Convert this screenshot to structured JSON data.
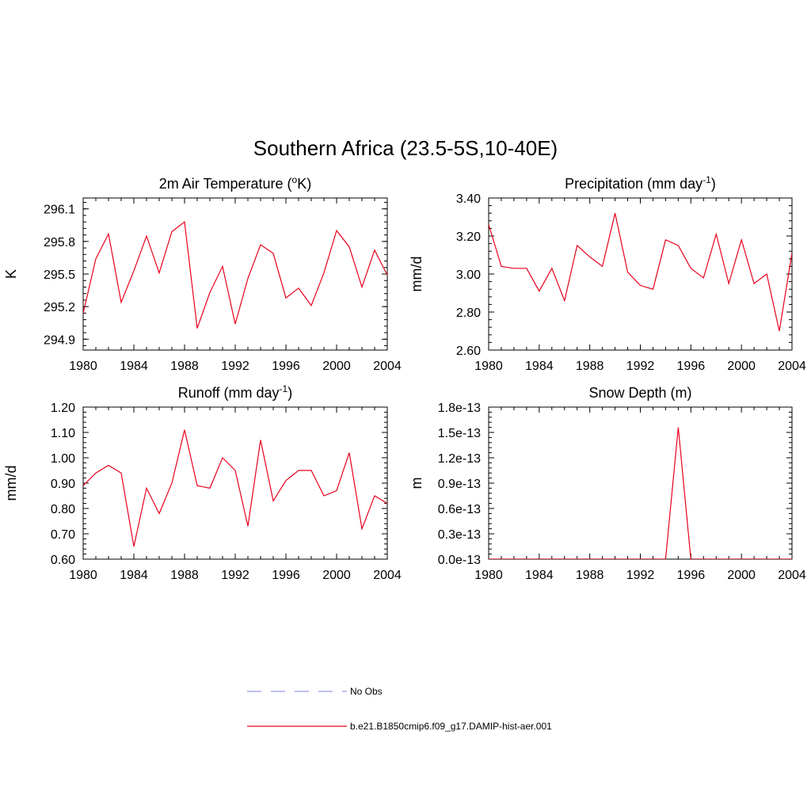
{
  "figure": {
    "title": "Southern Africa (23.5-5S,10-40E)",
    "series_color": "#e8001c",
    "obs_color": "#9999ee"
  },
  "legend": {
    "items": [
      {
        "label": "No Obs",
        "style": "dashed",
        "color": "#9999ee"
      },
      {
        "label": "b.e21.B1850cmip6.f09_g17.DAMIP-hist-aer.001",
        "style": "solid",
        "color": "#e8001c"
      }
    ]
  },
  "chart_data": [
    {
      "type": "line",
      "title_main": "2m Air Temperature (",
      "title_sup": "o",
      "title_tail": "K)",
      "ylabel": "K",
      "xlim": [
        1980,
        2004
      ],
      "ylim": [
        294.8,
        296.2
      ],
      "xticks": [
        1980,
        1984,
        1988,
        1992,
        1996,
        2000,
        2004
      ],
      "xtick_labels": [
        "1980",
        "1984",
        "1988",
        "1992",
        "1996",
        "2000",
        "2004"
      ],
      "yticks": [
        294.9,
        295.2,
        295.5,
        295.8,
        296.1
      ],
      "ytick_labels": [
        "294.9",
        "295.2",
        "295.5",
        "295.8",
        "296.1"
      ],
      "x": [
        1980,
        1981,
        1982,
        1983,
        1984,
        1985,
        1986,
        1987,
        1988,
        1989,
        1990,
        1991,
        1992,
        1993,
        1994,
        1995,
        1996,
        1997,
        1998,
        1999,
        2000,
        2001,
        2002,
        2003,
        2004
      ],
      "series": [
        {
          "values": [
            295.14,
            295.64,
            295.87,
            295.24,
            295.53,
            295.85,
            295.51,
            295.89,
            295.98,
            295.0,
            295.33,
            295.57,
            295.04,
            295.46,
            295.77,
            295.69,
            295.28,
            295.37,
            295.21,
            295.51,
            295.9,
            295.75,
            295.38,
            295.72,
            295.49
          ]
        }
      ]
    },
    {
      "type": "line",
      "title_main": "Precipitation (mm day",
      "title_sup": "-1",
      "title_tail": ")",
      "ylabel": "mm/d",
      "xlim": [
        1980,
        2004
      ],
      "ylim": [
        2.6,
        3.4
      ],
      "xticks": [
        1980,
        1984,
        1988,
        1992,
        1996,
        2000,
        2004
      ],
      "xtick_labels": [
        "1980",
        "1984",
        "1988",
        "1992",
        "1996",
        "2000",
        "2004"
      ],
      "yticks": [
        2.6,
        2.8,
        3.0,
        3.2,
        3.4
      ],
      "ytick_labels": [
        "2.60",
        "2.80",
        "3.00",
        "3.20",
        "3.40"
      ],
      "x": [
        1980,
        1981,
        1982,
        1983,
        1984,
        1985,
        1986,
        1987,
        1988,
        1989,
        1990,
        1991,
        1992,
        1993,
        1994,
        1995,
        1996,
        1997,
        1998,
        1999,
        2000,
        2001,
        2002,
        2003,
        2004
      ],
      "series": [
        {
          "values": [
            3.26,
            3.04,
            3.03,
            3.03,
            2.91,
            3.03,
            2.86,
            3.15,
            3.09,
            3.04,
            3.32,
            3.01,
            2.94,
            2.92,
            3.18,
            3.15,
            3.03,
            2.98,
            3.21,
            2.95,
            3.18,
            2.95,
            3.0,
            2.7,
            3.11
          ]
        }
      ]
    },
    {
      "type": "line",
      "title_main": "Runoff (mm day",
      "title_sup": "-1",
      "title_tail": ")",
      "ylabel": "mm/d",
      "xlim": [
        1980,
        2004
      ],
      "ylim": [
        0.6,
        1.2
      ],
      "xticks": [
        1980,
        1984,
        1988,
        1992,
        1996,
        2000,
        2004
      ],
      "xtick_labels": [
        "1980",
        "1984",
        "1988",
        "1992",
        "1996",
        "2000",
        "2004"
      ],
      "yticks": [
        0.6,
        0.7,
        0.8,
        0.9,
        1.0,
        1.1,
        1.2
      ],
      "ytick_labels": [
        "0.60",
        "0.70",
        "0.80",
        "0.90",
        "1.00",
        "1.10",
        "1.20"
      ],
      "x": [
        1980,
        1981,
        1982,
        1983,
        1984,
        1985,
        1986,
        1987,
        1988,
        1989,
        1990,
        1991,
        1992,
        1993,
        1994,
        1995,
        1996,
        1997,
        1998,
        1999,
        2000,
        2001,
        2002,
        2003,
        2004
      ],
      "series": [
        {
          "values": [
            0.89,
            0.94,
            0.97,
            0.94,
            0.65,
            0.88,
            0.78,
            0.9,
            1.11,
            0.89,
            0.88,
            1.0,
            0.95,
            0.73,
            1.07,
            0.83,
            0.91,
            0.95,
            0.95,
            0.85,
            0.87,
            1.02,
            0.72,
            0.85,
            0.82
          ]
        }
      ]
    },
    {
      "type": "line",
      "title_main": "Snow Depth (m)",
      "title_sup": "",
      "title_tail": "",
      "ylabel": "m",
      "xlim": [
        1980,
        2004
      ],
      "ylim": [
        0.0,
        1.8e-13
      ],
      "xticks": [
        1980,
        1984,
        1988,
        1992,
        1996,
        2000,
        2004
      ],
      "xtick_labels": [
        "1980",
        "1984",
        "1988",
        "1992",
        "1996",
        "2000",
        "2004"
      ],
      "yticks": [
        0.0,
        3e-14,
        6e-14,
        9e-14,
        1.2e-13,
        1.5e-13,
        1.8e-13
      ],
      "ytick_labels": [
        "0.0e-13",
        "0.3e-13",
        "0.6e-13",
        "0.9e-13",
        "1.2e-13",
        "1.5e-13",
        "1.8e-13"
      ],
      "x": [
        1980,
        1981,
        1982,
        1983,
        1984,
        1985,
        1986,
        1987,
        1988,
        1989,
        1990,
        1991,
        1992,
        1993,
        1994,
        1995,
        1996,
        1997,
        1998,
        1999,
        2000,
        2001,
        2002,
        2003,
        2004
      ],
      "series": [
        {
          "values": [
            0,
            0,
            0,
            0,
            0,
            0,
            0,
            0,
            0,
            0,
            0,
            0,
            0,
            0,
            0,
            1.56e-13,
            0,
            0,
            0,
            0,
            0,
            0,
            0,
            0,
            0
          ]
        }
      ]
    }
  ]
}
